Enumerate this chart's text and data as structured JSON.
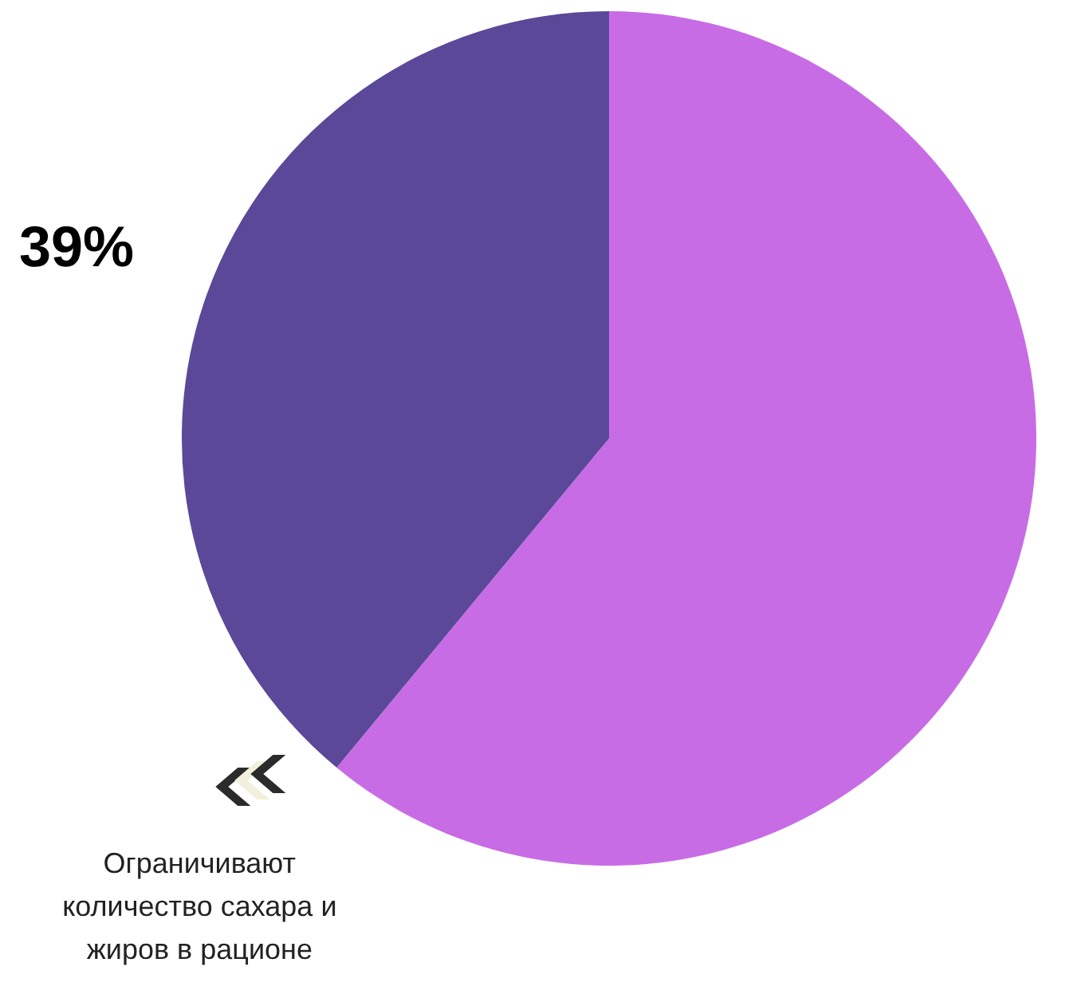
{
  "chart_data": {
    "type": "pie",
    "categories": [
      null,
      "Ограничивают количество сахара и жиров в рационе"
    ],
    "values": [
      61,
      39
    ],
    "colors": [
      "#c86ce6",
      "#5b4898"
    ],
    "value_labels": [
      null,
      "39%"
    ]
  }
}
